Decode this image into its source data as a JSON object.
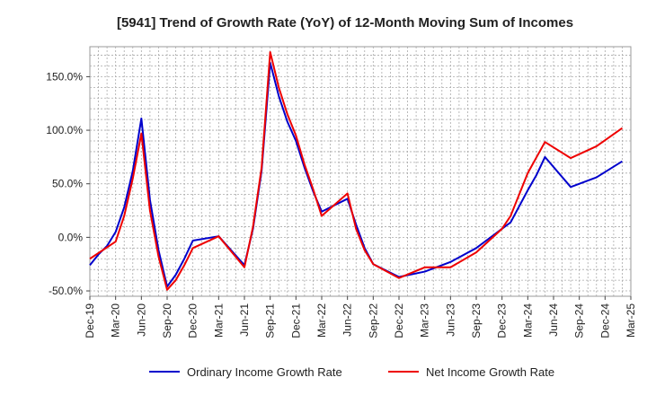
{
  "chart_data": {
    "type": "line",
    "title": "[5941]  Trend of Growth Rate (YoY) of 12-Month Moving Sum of Incomes",
    "xlabel": "",
    "ylabel": "",
    "x_tick_labels": [
      "Dec-19",
      "Mar-20",
      "Jun-20",
      "Sep-20",
      "Dec-20",
      "Mar-21",
      "Jun-21",
      "Sep-21",
      "Dec-21",
      "Mar-22",
      "Jun-22",
      "Sep-22",
      "Dec-22",
      "Mar-23",
      "Jun-23",
      "Sep-23",
      "Dec-23",
      "Mar-24",
      "Jun-24",
      "Sep-24",
      "Dec-24",
      "Mar-25"
    ],
    "y_tick_values": [
      -50,
      0,
      50,
      100,
      150
    ],
    "y_tick_labels": [
      "-50.0%",
      "0.0%",
      "50.0%",
      "100.0%",
      "150.0%"
    ],
    "ylim": [
      -55,
      178
    ],
    "x_months_range": [
      0,
      63
    ],
    "grid": true,
    "legend_position": "bottom",
    "series": [
      {
        "name": "Ordinary Income Growth Rate",
        "color": "#0000cc",
        "points": [
          [
            0,
            -26
          ],
          [
            1,
            -16
          ],
          [
            2,
            -8
          ],
          [
            3,
            5
          ],
          [
            4,
            28
          ],
          [
            5,
            62
          ],
          [
            6,
            111
          ],
          [
            7,
            35
          ],
          [
            8,
            -12
          ],
          [
            9,
            -46
          ],
          [
            10,
            -35
          ],
          [
            11,
            -20
          ],
          [
            12,
            -3
          ],
          [
            15,
            1
          ],
          [
            18,
            -26
          ],
          [
            19,
            8
          ],
          [
            20,
            62
          ],
          [
            21,
            163
          ],
          [
            22,
            132
          ],
          [
            23,
            108
          ],
          [
            24,
            90
          ],
          [
            25,
            65
          ],
          [
            26,
            43
          ],
          [
            27,
            24
          ],
          [
            30,
            36
          ],
          [
            31,
            12
          ],
          [
            32,
            -10
          ],
          [
            33,
            -25
          ],
          [
            36,
            -37
          ],
          [
            39,
            -32
          ],
          [
            42,
            -23
          ],
          [
            45,
            -10
          ],
          [
            47,
            2
          ],
          [
            48,
            8
          ],
          [
            49,
            14
          ],
          [
            51,
            44
          ],
          [
            52,
            58
          ],
          [
            53,
            75
          ],
          [
            56,
            47
          ],
          [
            59,
            56
          ],
          [
            62,
            71
          ]
        ]
      },
      {
        "name": "Net Income Growth Rate",
        "color": "#ee0000",
        "points": [
          [
            0,
            -20
          ],
          [
            3,
            -4
          ],
          [
            4,
            20
          ],
          [
            5,
            55
          ],
          [
            6,
            97
          ],
          [
            7,
            25
          ],
          [
            8,
            -18
          ],
          [
            9,
            -49
          ],
          [
            10,
            -40
          ],
          [
            11,
            -26
          ],
          [
            12,
            -10
          ],
          [
            15,
            1
          ],
          [
            18,
            -28
          ],
          [
            19,
            10
          ],
          [
            20,
            65
          ],
          [
            21,
            173
          ],
          [
            22,
            140
          ],
          [
            23,
            115
          ],
          [
            24,
            95
          ],
          [
            25,
            68
          ],
          [
            26,
            45
          ],
          [
            27,
            20
          ],
          [
            30,
            41
          ],
          [
            31,
            8
          ],
          [
            32,
            -12
          ],
          [
            33,
            -25
          ],
          [
            36,
            -38
          ],
          [
            39,
            -28
          ],
          [
            42,
            -28
          ],
          [
            45,
            -14
          ],
          [
            48,
            8
          ],
          [
            49,
            20
          ],
          [
            51,
            60
          ],
          [
            53,
            89
          ],
          [
            56,
            74
          ],
          [
            59,
            85
          ],
          [
            62,
            102
          ]
        ]
      }
    ]
  }
}
